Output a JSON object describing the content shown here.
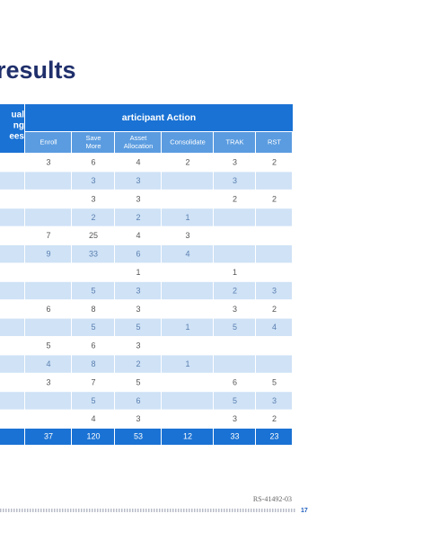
{
  "title": "results",
  "table": {
    "corner_lines": [
      "ual",
      "ng",
      "ees"
    ],
    "group_header": "articipant Action",
    "columns": [
      [
        "Enroll"
      ],
      [
        "Save",
        "More"
      ],
      [
        "Asset",
        "Allocation"
      ],
      [
        "Consolidate"
      ],
      [
        "TRAK"
      ],
      [
        "RST"
      ]
    ],
    "rows": [
      [
        3,
        6,
        4,
        2,
        3,
        2
      ],
      [
        null,
        3,
        3,
        null,
        3,
        null
      ],
      [
        null,
        3,
        3,
        null,
        2,
        2
      ],
      [
        null,
        2,
        2,
        1,
        null,
        null
      ],
      [
        7,
        25,
        4,
        3,
        null,
        null
      ],
      [
        9,
        33,
        6,
        4,
        null,
        null
      ],
      [
        null,
        null,
        1,
        null,
        1,
        null
      ],
      [
        null,
        5,
        3,
        null,
        2,
        3
      ],
      [
        6,
        8,
        3,
        null,
        3,
        2
      ],
      [
        null,
        5,
        5,
        1,
        5,
        4
      ],
      [
        5,
        6,
        3,
        null,
        null,
        null
      ],
      [
        4,
        8,
        2,
        1,
        null,
        null
      ],
      [
        3,
        7,
        5,
        null,
        6,
        5
      ],
      [
        null,
        5,
        6,
        null,
        5,
        3
      ],
      [
        null,
        4,
        3,
        null,
        3,
        2
      ]
    ],
    "totals": [
      37,
      120,
      53,
      12,
      33,
      23
    ]
  },
  "footer": {
    "code": "RS-41492-03",
    "page": "17"
  }
}
